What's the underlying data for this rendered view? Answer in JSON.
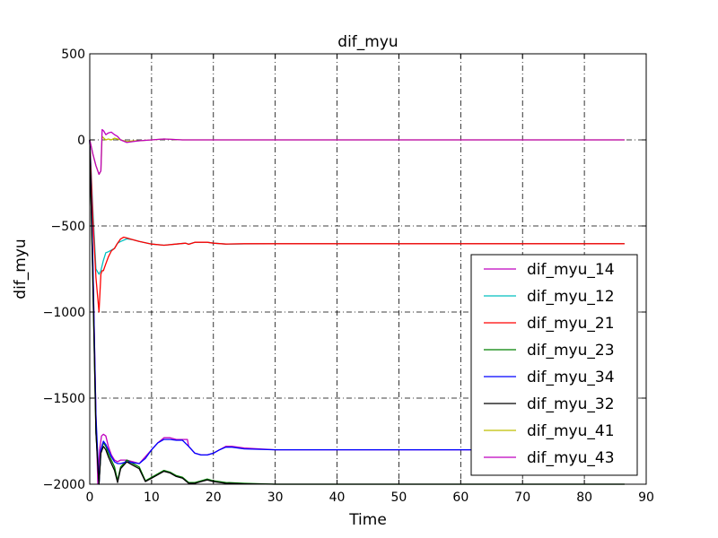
{
  "chart_data": {
    "type": "line",
    "title": "dif_myu",
    "xlabel": "Time",
    "ylabel": "dif_myu",
    "xlim": [
      0,
      90
    ],
    "ylim": [
      -2000,
      500
    ],
    "xticks": [
      "0",
      "10",
      "20",
      "30",
      "40",
      "50",
      "60",
      "70",
      "80",
      "90"
    ],
    "yticks": [
      "500",
      "0",
      "−500",
      "−1000",
      "−1500",
      "−2000"
    ],
    "grid": true,
    "legend_position": "lower-right",
    "series": [
      {
        "name": "dif_myu_14",
        "color": "#bf00bf",
        "x": [
          0,
          0.5,
          1,
          1.3,
          1.6,
          1.9,
          2.2,
          2.6,
          3,
          3.5,
          4,
          4.5,
          5,
          6,
          7,
          8,
          9,
          10,
          11,
          12,
          13,
          14,
          15,
          15.8,
          16,
          17,
          18,
          19,
          20,
          21,
          22,
          23,
          25,
          30,
          40,
          50,
          60,
          70,
          80,
          86.5
        ],
        "y": [
          0,
          -700,
          -1600,
          -2000,
          -1800,
          -1720,
          -1710,
          -1720,
          -1780,
          -1830,
          -1860,
          -1870,
          -1860,
          -1860,
          -1870,
          -1880,
          -1840,
          -1800,
          -1760,
          -1730,
          -1730,
          -1740,
          -1740,
          -1740,
          -1780,
          -1820,
          -1830,
          -1830,
          -1820,
          -1800,
          -1780,
          -1780,
          -1790,
          -1800,
          -1800,
          -1800,
          -1800,
          -1800,
          -1800,
          -1800
        ]
      },
      {
        "name": "dif_myu_12",
        "color": "#00bfbf",
        "x": [
          0,
          0.5,
          1,
          1.5,
          1.8,
          2.2,
          2.6,
          3,
          3.5,
          4,
          4.5,
          5,
          6,
          7,
          8,
          10,
          12,
          14,
          15.5,
          16,
          17,
          19,
          20,
          22,
          25,
          30,
          40,
          50,
          60,
          70,
          80,
          86.5
        ],
        "y": [
          0,
          -400,
          -750,
          -780,
          -760,
          -700,
          -655,
          -650,
          -640,
          -630,
          -600,
          -590,
          -575,
          -580,
          -590,
          -605,
          -612,
          -605,
          -600,
          -605,
          -595,
          -595,
          -600,
          -605,
          -604,
          -603,
          -603,
          -603,
          -603,
          -603,
          -603,
          -603
        ]
      },
      {
        "name": "dif_myu_21",
        "color": "#ff0000",
        "x": [
          0,
          0.5,
          1,
          1.5,
          1.8,
          2,
          2.2,
          2.6,
          3,
          3.5,
          4,
          4.5,
          5,
          5.5,
          6,
          7,
          8,
          10,
          12,
          14,
          15.5,
          16,
          17,
          19,
          20,
          22,
          25,
          30,
          40,
          50,
          60,
          70,
          80,
          86.5
        ],
        "y": [
          0,
          -450,
          -800,
          -1000,
          -780,
          -760,
          -760,
          -720,
          -680,
          -645,
          -630,
          -600,
          -575,
          -565,
          -570,
          -580,
          -590,
          -605,
          -612,
          -605,
          -600,
          -607,
          -595,
          -595,
          -600,
          -605,
          -603,
          -603,
          -603,
          -603,
          -603,
          -603,
          -603,
          -603
        ]
      },
      {
        "name": "dif_myu_23",
        "color": "#008000",
        "x": [
          0,
          0.5,
          1,
          1.5,
          1.8,
          2.2,
          2.6,
          3,
          3.5,
          4,
          4.5,
          5,
          6,
          7,
          8,
          9,
          10,
          11,
          12,
          13,
          14,
          15,
          16,
          17,
          18,
          19,
          20,
          22,
          25,
          30,
          40,
          50,
          60,
          70,
          80,
          86.5
        ],
        "y": [
          0,
          -800,
          -1700,
          -2000,
          -1800,
          -1760,
          -1780,
          -1820,
          -1860,
          -1900,
          -1980,
          -1900,
          -1860,
          -1880,
          -1900,
          -1980,
          -1960,
          -1940,
          -1920,
          -1930,
          -1950,
          -1960,
          -1990,
          -1990,
          -1980,
          -1970,
          -1980,
          -1990,
          -1995,
          -2000,
          -2000,
          -2000,
          -2000,
          -2000,
          -2000,
          -2000
        ]
      },
      {
        "name": "dif_myu_34",
        "color": "#0000ff",
        "x": [
          0,
          0.5,
          1,
          1.5,
          1.8,
          2.2,
          2.6,
          3,
          3.5,
          4,
          4.5,
          5,
          6,
          7,
          8,
          9,
          10,
          11,
          12,
          13,
          14,
          15,
          16,
          17,
          18,
          19,
          20,
          21,
          22,
          23,
          25,
          30,
          40,
          50,
          60,
          70,
          80,
          86.5
        ],
        "y": [
          0,
          -700,
          -1600,
          -2000,
          -1800,
          -1750,
          -1770,
          -1800,
          -1840,
          -1870,
          -1880,
          -1880,
          -1870,
          -1875,
          -1880,
          -1850,
          -1800,
          -1760,
          -1740,
          -1740,
          -1745,
          -1745,
          -1780,
          -1820,
          -1830,
          -1830,
          -1820,
          -1800,
          -1785,
          -1785,
          -1795,
          -1800,
          -1800,
          -1800,
          -1800,
          -1800,
          -1800,
          -1800
        ]
      },
      {
        "name": "dif_myu_32",
        "color": "#000000",
        "x": [
          0,
          0.5,
          1,
          1.5,
          1.8,
          2.2,
          2.6,
          3,
          3.5,
          4,
          4.5,
          5,
          6,
          7,
          8,
          9,
          10,
          11,
          12,
          13,
          14,
          15,
          16,
          17,
          18,
          19,
          20,
          22,
          25,
          30,
          40,
          50,
          60,
          70,
          80,
          86.5
        ],
        "y": [
          0,
          -800,
          -1700,
          -2000,
          -1820,
          -1780,
          -1800,
          -1840,
          -1880,
          -1920,
          -1990,
          -1910,
          -1870,
          -1890,
          -1910,
          -1985,
          -1965,
          -1945,
          -1925,
          -1935,
          -1955,
          -1965,
          -1995,
          -1995,
          -1985,
          -1975,
          -1985,
          -1995,
          -1998,
          -2000,
          -2000,
          -2000,
          -2000,
          -2000,
          -2000,
          -2000
        ]
      },
      {
        "name": "dif_myu_41",
        "color": "#bfbf00",
        "x": [
          0,
          0.5,
          1,
          1.5,
          1.8,
          2,
          2.3,
          2.6,
          3,
          3.5,
          4,
          4.5,
          5,
          6,
          7,
          8,
          10,
          12,
          15,
          20,
          30,
          40,
          50,
          60,
          70,
          80,
          86.5
        ],
        "y": [
          0,
          -80,
          -150,
          -200,
          -180,
          20,
          10,
          0,
          5,
          0,
          10,
          5,
          0,
          -10,
          -5,
          -5,
          0,
          5,
          0,
          0,
          0,
          0,
          0,
          0,
          0,
          0,
          0
        ]
      },
      {
        "name": "dif_myu_43",
        "color": "#bf00bf",
        "x": [
          0,
          0.5,
          1,
          1.5,
          1.8,
          2,
          2.3,
          2.6,
          3,
          3.5,
          4,
          4.5,
          5,
          6,
          7,
          8,
          10,
          12,
          15,
          20,
          30,
          40,
          50,
          60,
          70,
          80,
          86.5
        ],
        "y": [
          0,
          -80,
          -150,
          -200,
          -180,
          60,
          50,
          30,
          40,
          45,
          30,
          20,
          0,
          -15,
          -10,
          -5,
          0,
          5,
          0,
          0,
          0,
          0,
          0,
          0,
          0,
          0,
          0
        ]
      }
    ]
  }
}
